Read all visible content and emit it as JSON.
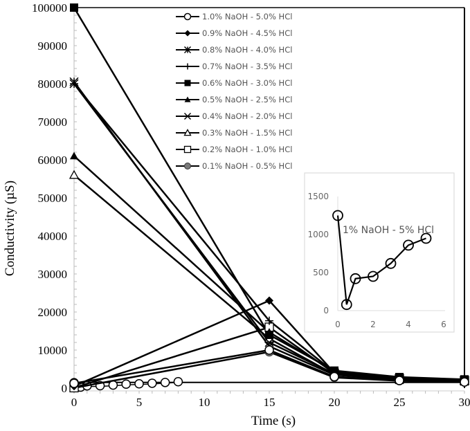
{
  "chart_data": [
    {
      "type": "line",
      "title": "",
      "xlabel": "Time (s)",
      "ylabel": "Conductivity (µS)",
      "xlim": [
        0,
        30
      ],
      "ylim": [
        0,
        100000
      ],
      "xticks": [
        0,
        5,
        10,
        15,
        20,
        25,
        30
      ],
      "yticks": [
        0,
        10000,
        20000,
        30000,
        40000,
        50000,
        60000,
        70000,
        80000,
        90000,
        100000
      ],
      "grid": false,
      "legend_position": "top-center-inside",
      "x": [
        0,
        15,
        20,
        25,
        30
      ],
      "series": [
        {
          "name": "1.0% NaOH - 5.0% HCl",
          "marker": "open-circle",
          "values": [
            1250,
            10000,
            3000,
            2000,
            1600
          ]
        },
        {
          "name": "0.9% NaOH - 4.5% HCl",
          "marker": "filled-diamond",
          "values": [
            500,
            23000,
            4000,
            2500,
            1800
          ]
        },
        {
          "name": "0.8% NaOH -  4.0% HCl",
          "marker": "asterisk",
          "values": [
            80500,
            11000,
            3500,
            2200,
            1800
          ]
        },
        {
          "name": "0.7% NaOH - 3.5% HCl",
          "marker": "plus",
          "values": [
            80000,
            17700,
            4200,
            2600,
            2000
          ]
        },
        {
          "name": "0.6% NaOH - 3.0% HCl",
          "marker": "filled-square",
          "values": [
            100000,
            14000,
            4600,
            2900,
            2300
          ]
        },
        {
          "name": "0.5% NaOH - 2.5% HCl",
          "marker": "filled-triangle",
          "values": [
            61000,
            14700,
            4300,
            2700,
            2100
          ]
        },
        {
          "name": "0.4% NaOH - 2.0% HCl",
          "marker": "x",
          "values": [
            80000,
            12000,
            3800,
            2400,
            1900
          ]
        },
        {
          "name": "0.3% NaOH - 1.5% HCl",
          "marker": "open-triangle",
          "values": [
            56000,
            13000,
            3600,
            2300,
            1900
          ]
        },
        {
          "name": "0.2% NaOH - 1.0% HCl",
          "marker": "open-square",
          "values": [
            100,
            16000,
            3900,
            2500,
            2000
          ]
        },
        {
          "name": "0.1% NaOH - 0.5% HCl",
          "marker": "gray-circle",
          "values": [
            50,
            9500,
            2800,
            1900,
            1700
          ]
        }
      ],
      "extra_series_near_zero": {
        "name": "1.0% NaOH - 5.0% HCl (first seconds)",
        "x": [
          0,
          0.5,
          1,
          2,
          3,
          4,
          5,
          6,
          7,
          8
        ],
        "values": [
          1250,
          80,
          420,
          450,
          620,
          860,
          950,
          1100,
          1300,
          1500
        ]
      }
    },
    {
      "type": "line",
      "title": "",
      "annotation": "1% NaOH - 5% HCl",
      "xlabel": "",
      "ylabel": "",
      "xlim": [
        0,
        6
      ],
      "ylim": [
        0,
        1500
      ],
      "xticks": [
        0,
        2,
        4,
        6
      ],
      "yticks": [
        0,
        500,
        1000,
        1500
      ],
      "grid": false,
      "x": [
        0,
        0.5,
        1,
        2,
        3,
        4,
        5
      ],
      "series": [
        {
          "name": "1% NaOH - 5% HCl",
          "marker": "open-circle",
          "values": [
            1250,
            80,
            420,
            450,
            620,
            860,
            950
          ]
        }
      ]
    }
  ],
  "labels": {
    "xlabel": "Time (s)",
    "ylabel": "Conductivity (µS)",
    "inset_annotation": "1% NaOH - 5% HCl"
  }
}
